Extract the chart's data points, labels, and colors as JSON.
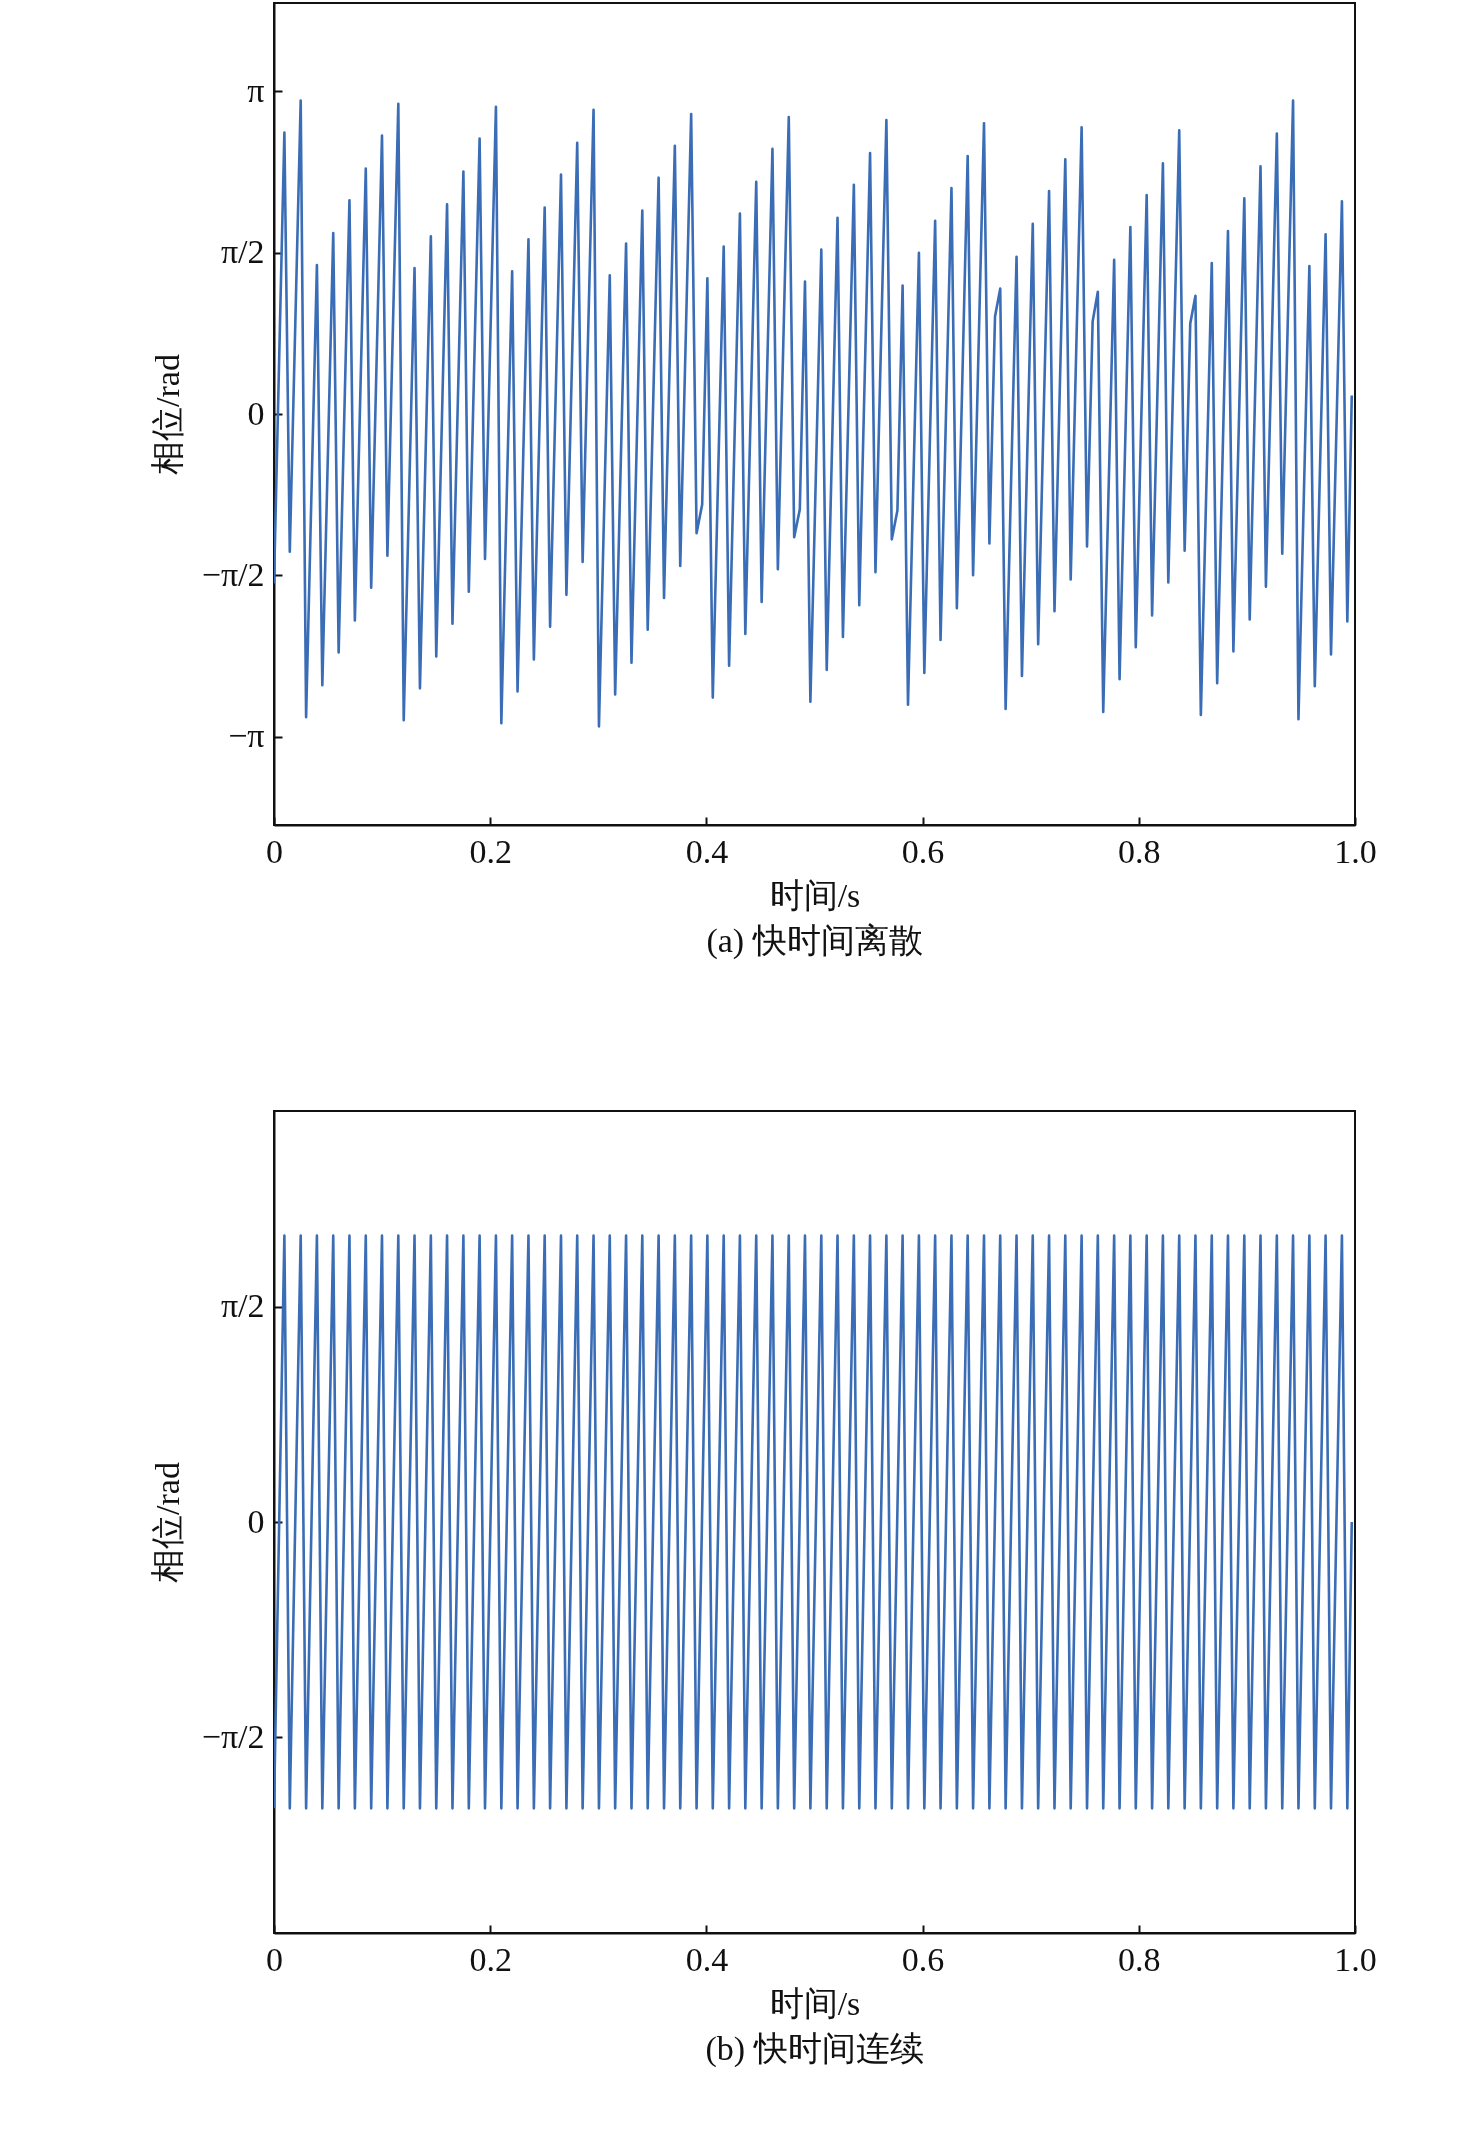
{
  "chart_data": [
    {
      "type": "line",
      "title": "(a) 快时间离散",
      "xlabel": "时间/s",
      "ylabel": "相位/rad",
      "x": [
        0,
        0.0096,
        0.0146,
        0.0247,
        0.0297,
        0.0397,
        0.0447,
        0.0548,
        0.0598,
        0.0698,
        0.0748,
        0.0849,
        0.0899,
        0.0999,
        0.1049,
        0.115,
        0.12,
        0.13,
        0.135,
        0.1451,
        0.1501,
        0.1601,
        0.1651,
        0.1752,
        0.1802,
        0.1902,
        0.1952,
        0.2053,
        0.2103,
        0.2203,
        0.2253,
        0.2354,
        0.2404,
        0.2504,
        0.2554,
        0.2655,
        0.2705,
        0.2805,
        0.2855,
        0.2956,
        0.3006,
        0.3106,
        0.3156,
        0.3257,
        0.3307,
        0.3407,
        0.3457,
        0.3558,
        0.3608,
        0.3708,
        0.3758,
        0.3859,
        0.3909,
        0.3961,
        0.4009,
        0.4059,
        0.416,
        0.421,
        0.431,
        0.436,
        0.4461,
        0.4511,
        0.4611,
        0.4661,
        0.4762,
        0.4812,
        0.4864,
        0.4912,
        0.4962,
        0.5063,
        0.5113,
        0.5213,
        0.5263,
        0.5364,
        0.5414,
        0.5514,
        0.5564,
        0.5665,
        0.5715,
        0.5767,
        0.5815,
        0.5865,
        0.5966,
        0.6016,
        0.6116,
        0.6166,
        0.6267,
        0.6317,
        0.6417,
        0.6467,
        0.6568,
        0.6618,
        0.667,
        0.6718,
        0.6768,
        0.6869,
        0.6919,
        0.7019,
        0.7069,
        0.717,
        0.722,
        0.732,
        0.737,
        0.7471,
        0.7521,
        0.7573,
        0.7621,
        0.7671,
        0.7772,
        0.7822,
        0.7922,
        0.7972,
        0.8073,
        0.8123,
        0.8223,
        0.8273,
        0.8374,
        0.8424,
        0.8476,
        0.8524,
        0.8574,
        0.8675,
        0.8725,
        0.8825,
        0.8875,
        0.8976,
        0.9026,
        0.9126,
        0.9176,
        0.9277,
        0.9327,
        0.9427,
        0.9477,
        0.9578,
        0.9628,
        0.9728,
        0.9778,
        0.9879,
        0.9929,
        0.997
      ],
      "series": [
        {
          "color": "#3a6db5",
          "values": [
            -1.65,
            2.74,
            -1.34,
            3.05,
            -2.95,
            1.45,
            -2.64,
            1.76,
            -2.32,
            2.08,
            -2.01,
            2.39,
            -1.69,
            2.71,
            -1.38,
            3.02,
            -2.98,
            1.42,
            -2.67,
            1.73,
            -2.36,
            2.04,
            -2.04,
            2.36,
            -1.73,
            2.68,
            -1.41,
            2.99,
            -3.01,
            1.39,
            -2.7,
            1.7,
            -2.39,
            2.01,
            -2.07,
            2.33,
            -1.76,
            2.64,
            -1.44,
            2.96,
            -3.04,
            1.35,
            -2.73,
            1.66,
            -2.42,
            1.98,
            -2.1,
            2.3,
            -1.79,
            2.61,
            -1.48,
            2.92,
            -1.16,
            -0.88,
            1.32,
            -2.76,
            1.63,
            -2.45,
            1.95,
            -2.14,
            2.26,
            -1.83,
            2.58,
            -1.51,
            2.89,
            -1.2,
            -0.93,
            1.29,
            -2.8,
            1.6,
            -2.49,
            1.91,
            -2.17,
            2.23,
            -1.86,
            2.54,
            -1.54,
            2.86,
            -1.22,
            -0.94,
            1.25,
            -2.83,
            1.57,
            -2.52,
            1.88,
            -2.2,
            2.2,
            -1.89,
            2.51,
            -1.57,
            2.83,
            -1.26,
            0.95,
            1.22,
            -2.87,
            1.53,
            -2.55,
            1.85,
            -2.24,
            2.17,
            -1.92,
            2.48,
            -1.61,
            2.79,
            -1.29,
            0.9,
            1.19,
            -2.9,
            1.5,
            -2.58,
            1.82,
            -2.27,
            2.13,
            -1.96,
            2.44,
            -1.64,
            2.76,
            -1.33,
            0.88,
            1.15,
            -2.93,
            1.47,
            -2.62,
            1.78,
            -2.31,
            2.1,
            -2.0,
            2.41,
            -1.68,
            2.73,
            -1.36,
            3.05,
            -2.97,
            1.44,
            -2.65,
            1.75,
            -2.34,
            2.07,
            -2.02,
            0.18
          ]
        }
      ],
      "xlim": [
        0,
        1
      ],
      "ylim": [
        -4,
        4
      ],
      "xticks": [
        0,
        0.2,
        0.4,
        0.6,
        0.8,
        {
          "value": 1,
          "label": "1.0"
        }
      ],
      "yticks": [
        {
          "value": -3.1416,
          "label": "−π"
        },
        {
          "value": -1.5708,
          "label": "−π/2"
        },
        0,
        {
          "value": 1.5708,
          "label": "π/2"
        },
        {
          "value": 3.1416,
          "label": "π"
        }
      ]
    },
    {
      "type": "line",
      "title": "(b) 快时间连续",
      "xlabel": "时间/s",
      "ylabel": "相位/rad",
      "x": [
        0,
        0.0096,
        0.0146,
        0.0247,
        0.0297,
        0.0397,
        0.0447,
        0.0548,
        0.0598,
        0.0698,
        0.0748,
        0.0849,
        0.0899,
        0.0999,
        0.1049,
        0.115,
        0.12,
        0.13,
        0.135,
        0.1451,
        0.1501,
        0.1601,
        0.1651,
        0.1752,
        0.1802,
        0.1902,
        0.1952,
        0.2053,
        0.2103,
        0.2203,
        0.2253,
        0.2354,
        0.2404,
        0.2504,
        0.2554,
        0.2655,
        0.2705,
        0.2805,
        0.2855,
        0.2956,
        0.3006,
        0.3106,
        0.3156,
        0.3257,
        0.3307,
        0.3407,
        0.3457,
        0.3558,
        0.3608,
        0.3708,
        0.3758,
        0.3859,
        0.3909,
        0.4009,
        0.4059,
        0.416,
        0.421,
        0.431,
        0.436,
        0.4461,
        0.4511,
        0.4611,
        0.4661,
        0.4762,
        0.4812,
        0.4912,
        0.4962,
        0.5063,
        0.5113,
        0.5213,
        0.5263,
        0.5364,
        0.5414,
        0.5514,
        0.5564,
        0.5665,
        0.5715,
        0.5815,
        0.5865,
        0.5966,
        0.6016,
        0.6116,
        0.6166,
        0.6267,
        0.6317,
        0.6417,
        0.6467,
        0.6568,
        0.6618,
        0.6718,
        0.6768,
        0.6869,
        0.6919,
        0.7019,
        0.7069,
        0.717,
        0.722,
        0.732,
        0.737,
        0.7471,
        0.7521,
        0.7621,
        0.7671,
        0.7772,
        0.7822,
        0.7922,
        0.7972,
        0.8073,
        0.8123,
        0.8223,
        0.8273,
        0.8374,
        0.8424,
        0.8524,
        0.8574,
        0.8675,
        0.8725,
        0.8825,
        0.8875,
        0.8976,
        0.9026,
        0.9126,
        0.9176,
        0.9277,
        0.9327,
        0.9427,
        0.9477,
        0.9578,
        0.9628,
        0.9728,
        0.9778,
        0.9879,
        0.9929,
        0.997
      ],
      "series": [
        {
          "color": "#3a6db5",
          "values": [
            -2.09,
            2.09,
            -2.09,
            2.09,
            -2.09,
            2.09,
            -2.09,
            2.09,
            -2.09,
            2.09,
            -2.09,
            2.09,
            -2.09,
            2.09,
            -2.09,
            2.09,
            -2.09,
            2.09,
            -2.09,
            2.09,
            -2.09,
            2.09,
            -2.09,
            2.09,
            -2.09,
            2.09,
            -2.09,
            2.09,
            -2.09,
            2.09,
            -2.09,
            2.09,
            -2.09,
            2.09,
            -2.09,
            2.09,
            -2.09,
            2.09,
            -2.09,
            2.09,
            -2.09,
            2.09,
            -2.09,
            2.09,
            -2.09,
            2.09,
            -2.09,
            2.09,
            -2.09,
            2.09,
            -2.09,
            2.09,
            -2.09,
            2.09,
            -2.09,
            2.09,
            -2.09,
            2.09,
            -2.09,
            2.09,
            -2.09,
            2.09,
            -2.09,
            2.09,
            -2.09,
            2.09,
            -2.09,
            2.09,
            -2.09,
            2.09,
            -2.09,
            2.09,
            -2.09,
            2.09,
            -2.09,
            2.09,
            -2.09,
            2.09,
            -2.09,
            2.09,
            -2.09,
            2.09,
            -2.09,
            2.09,
            -2.09,
            2.09,
            -2.09,
            2.09,
            -2.09,
            2.09,
            -2.09,
            2.09,
            -2.09,
            2.09,
            -2.09,
            2.09,
            -2.09,
            2.09,
            -2.09,
            2.09,
            -2.09,
            2.09,
            -2.09,
            2.09,
            -2.09,
            2.09,
            -2.09,
            2.09,
            -2.09,
            2.09,
            -2.09,
            2.09,
            -2.09,
            2.09,
            -2.09,
            2.09,
            -2.09,
            2.09,
            -2.09,
            2.09,
            -2.09,
            2.09,
            -2.09,
            2.09,
            -2.09,
            2.09,
            -2.09,
            2.09,
            -2.09,
            2.09,
            -2.09,
            2.09,
            -2.09,
            0
          ]
        }
      ],
      "xlim": [
        0,
        1
      ],
      "ylim": [
        -3,
        3
      ],
      "xticks": [
        0,
        0.2,
        0.4,
        0.6,
        0.8,
        {
          "value": 1,
          "label": "1.0"
        }
      ],
      "yticks": [
        {
          "value": -1.5708,
          "label": "−π/2"
        },
        0,
        {
          "value": 1.5708,
          "label": "π/2"
        }
      ]
    }
  ]
}
